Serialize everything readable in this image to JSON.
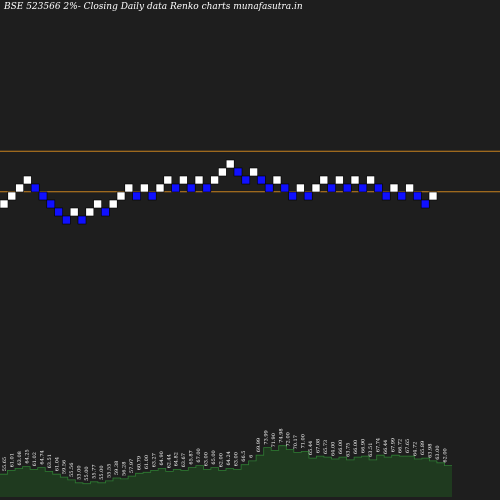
{
  "chart_data": {
    "type": "renko",
    "title": "BSE 523566  2%-  Closing Daily data  Renko  charts munafasutra.in",
    "colors": {
      "background": "#1e1e1e",
      "up_brick": "#ffffff",
      "down_brick": "#1010ff",
      "reference_line": "#c8821e",
      "volume_fill": "#1f3a1f",
      "volume_line": "#2e7d32",
      "text": "#ffffff"
    },
    "reference_lines_price": [
      74.4,
      66.8
    ],
    "bricks": [
      {
        "dir": "up",
        "price": 64.5
      },
      {
        "dir": "up",
        "price": 66.0
      },
      {
        "dir": "up",
        "price": 67.5
      },
      {
        "dir": "up",
        "price": 69.0
      },
      {
        "dir": "down",
        "price": 67.5
      },
      {
        "dir": "down",
        "price": 66.0
      },
      {
        "dir": "down",
        "price": 64.5
      },
      {
        "dir": "down",
        "price": 63.0
      },
      {
        "dir": "down",
        "price": 61.5
      },
      {
        "dir": "up",
        "price": 63.0
      },
      {
        "dir": "down",
        "price": 61.5
      },
      {
        "dir": "up",
        "price": 63.0
      },
      {
        "dir": "up",
        "price": 64.5
      },
      {
        "dir": "down",
        "price": 63.0
      },
      {
        "dir": "up",
        "price": 64.5
      },
      {
        "dir": "up",
        "price": 66.0
      },
      {
        "dir": "up",
        "price": 67.5
      },
      {
        "dir": "down",
        "price": 66.0
      },
      {
        "dir": "up",
        "price": 67.5
      },
      {
        "dir": "down",
        "price": 66.0
      },
      {
        "dir": "up",
        "price": 67.5
      },
      {
        "dir": "up",
        "price": 69.0
      },
      {
        "dir": "down",
        "price": 67.5
      },
      {
        "dir": "up",
        "price": 69.0
      },
      {
        "dir": "down",
        "price": 67.5
      },
      {
        "dir": "up",
        "price": 69.0
      },
      {
        "dir": "down",
        "price": 67.5
      },
      {
        "dir": "up",
        "price": 69.0
      },
      {
        "dir": "up",
        "price": 70.5
      },
      {
        "dir": "up",
        "price": 72.0
      },
      {
        "dir": "down",
        "price": 70.5
      },
      {
        "dir": "down",
        "price": 69.0
      },
      {
        "dir": "up",
        "price": 70.5
      },
      {
        "dir": "down",
        "price": 69.0
      },
      {
        "dir": "down",
        "price": 67.5
      },
      {
        "dir": "up",
        "price": 69.0
      },
      {
        "dir": "down",
        "price": 67.5
      },
      {
        "dir": "down",
        "price": 66.0
      },
      {
        "dir": "up",
        "price": 67.5
      },
      {
        "dir": "down",
        "price": 66.0
      },
      {
        "dir": "up",
        "price": 67.5
      },
      {
        "dir": "up",
        "price": 69.0
      },
      {
        "dir": "down",
        "price": 67.5
      },
      {
        "dir": "up",
        "price": 69.0
      },
      {
        "dir": "down",
        "price": 67.5
      },
      {
        "dir": "up",
        "price": 69.0
      },
      {
        "dir": "down",
        "price": 67.5
      },
      {
        "dir": "up",
        "price": 69.0
      },
      {
        "dir": "down",
        "price": 67.5
      },
      {
        "dir": "down",
        "price": 66.0
      },
      {
        "dir": "up",
        "price": 67.5
      },
      {
        "dir": "down",
        "price": 66.0
      },
      {
        "dir": "up",
        "price": 67.5
      },
      {
        "dir": "down",
        "price": 66.0
      },
      {
        "dir": "down",
        "price": 64.5
      },
      {
        "dir": "up",
        "price": 66.0
      }
    ],
    "volume_labels": [
      "55.65",
      "61.01",
      "63.08",
      "64.25",
      "61.02",
      "64.74",
      "63.51",
      "61.04",
      "59.56",
      "55.56",
      "53.00",
      "55.00",
      "55.77",
      "55.00",
      "55.55",
      "59.38",
      "56.28",
      "57.97",
      "60.79",
      "61.00",
      "63.27",
      "64.90",
      "62.44",
      "64.82",
      "63.67",
      "65.87",
      "67.00",
      "63.00",
      "65.00",
      "62.00",
      "64.24",
      "63.00",
      "66.5",
      "6",
      "69.99",
      "73.99",
      "71.90",
      "74.98",
      "72.00",
      "70.17",
      "71.00",
      "65.44",
      "67.08",
      "65.73",
      "64.00",
      "66.00",
      "63.75",
      "66.00",
      "66.90",
      "63.51",
      "67.74",
      "66.44",
      "67.99",
      "66.72",
      "67.65",
      "64.72",
      "65.89",
      "63.98",
      "63.00",
      "62.00"
    ],
    "volume_values": [
      24,
      28,
      30,
      32,
      29,
      31,
      27,
      24,
      21,
      18,
      15,
      14,
      16,
      15,
      17,
      20,
      19,
      22,
      25,
      26,
      28,
      30,
      27,
      29,
      28,
      31,
      33,
      29,
      31,
      28,
      30,
      29,
      34,
      38,
      44,
      52,
      49,
      54,
      50,
      47,
      48,
      41,
      43,
      42,
      40,
      42,
      39,
      42,
      43,
      39,
      44,
      42,
      44,
      43,
      43,
      40,
      41,
      38,
      36,
      33
    ]
  }
}
